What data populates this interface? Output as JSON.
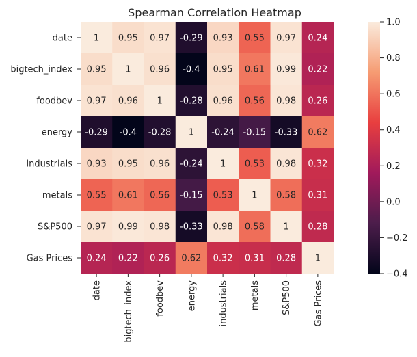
{
  "chart_data": {
    "type": "heatmap",
    "title": "Spearman Correlation Heatmap",
    "xlabel": "",
    "ylabel": "",
    "row_labels": [
      "date",
      "bigtech_index",
      "foodbev",
      "energy",
      "industrials",
      "metals",
      "S&P500",
      "Gas Prices"
    ],
    "col_labels": [
      "date",
      "bigtech_index",
      "foodbev",
      "energy",
      "industrials",
      "metals",
      "S&P500",
      "Gas Prices"
    ],
    "values": [
      [
        1,
        0.95,
        0.97,
        -0.29,
        0.93,
        0.55,
        0.97,
        0.24
      ],
      [
        0.95,
        1,
        0.96,
        -0.4,
        0.95,
        0.61,
        0.99,
        0.22
      ],
      [
        0.97,
        0.96,
        1,
        -0.28,
        0.96,
        0.56,
        0.98,
        0.26
      ],
      [
        -0.29,
        -0.4,
        -0.28,
        1,
        -0.24,
        -0.15,
        -0.33,
        0.62
      ],
      [
        0.93,
        0.95,
        0.96,
        -0.24,
        1,
        0.53,
        0.98,
        0.32
      ],
      [
        0.55,
        0.61,
        0.56,
        -0.15,
        0.53,
        1,
        0.58,
        0.31
      ],
      [
        0.97,
        0.99,
        0.98,
        -0.33,
        0.98,
        0.58,
        1,
        0.28
      ],
      [
        0.24,
        0.22,
        0.26,
        0.62,
        0.32,
        0.31,
        0.28,
        1
      ]
    ],
    "colorbar": {
      "vmin": -0.4,
      "vmax": 1.0,
      "ticks": [
        1.0,
        0.8,
        0.6,
        0.4,
        0.2,
        0.0,
        -0.2,
        -0.4
      ],
      "tick_labels": [
        "1.0",
        "0.8",
        "0.6",
        "0.4",
        "0.2",
        "0.0",
        "−0.2",
        "−0.4"
      ],
      "colormap": "rocket",
      "colormap_stops": [
        "#03051a",
        "#4c1d4b",
        "#a11a5b",
        "#e83f3f",
        "#f69c73",
        "#faebdd"
      ]
    },
    "annotation_colors": {
      "dark_text": "#262626",
      "light_text": "#ffffff"
    }
  }
}
